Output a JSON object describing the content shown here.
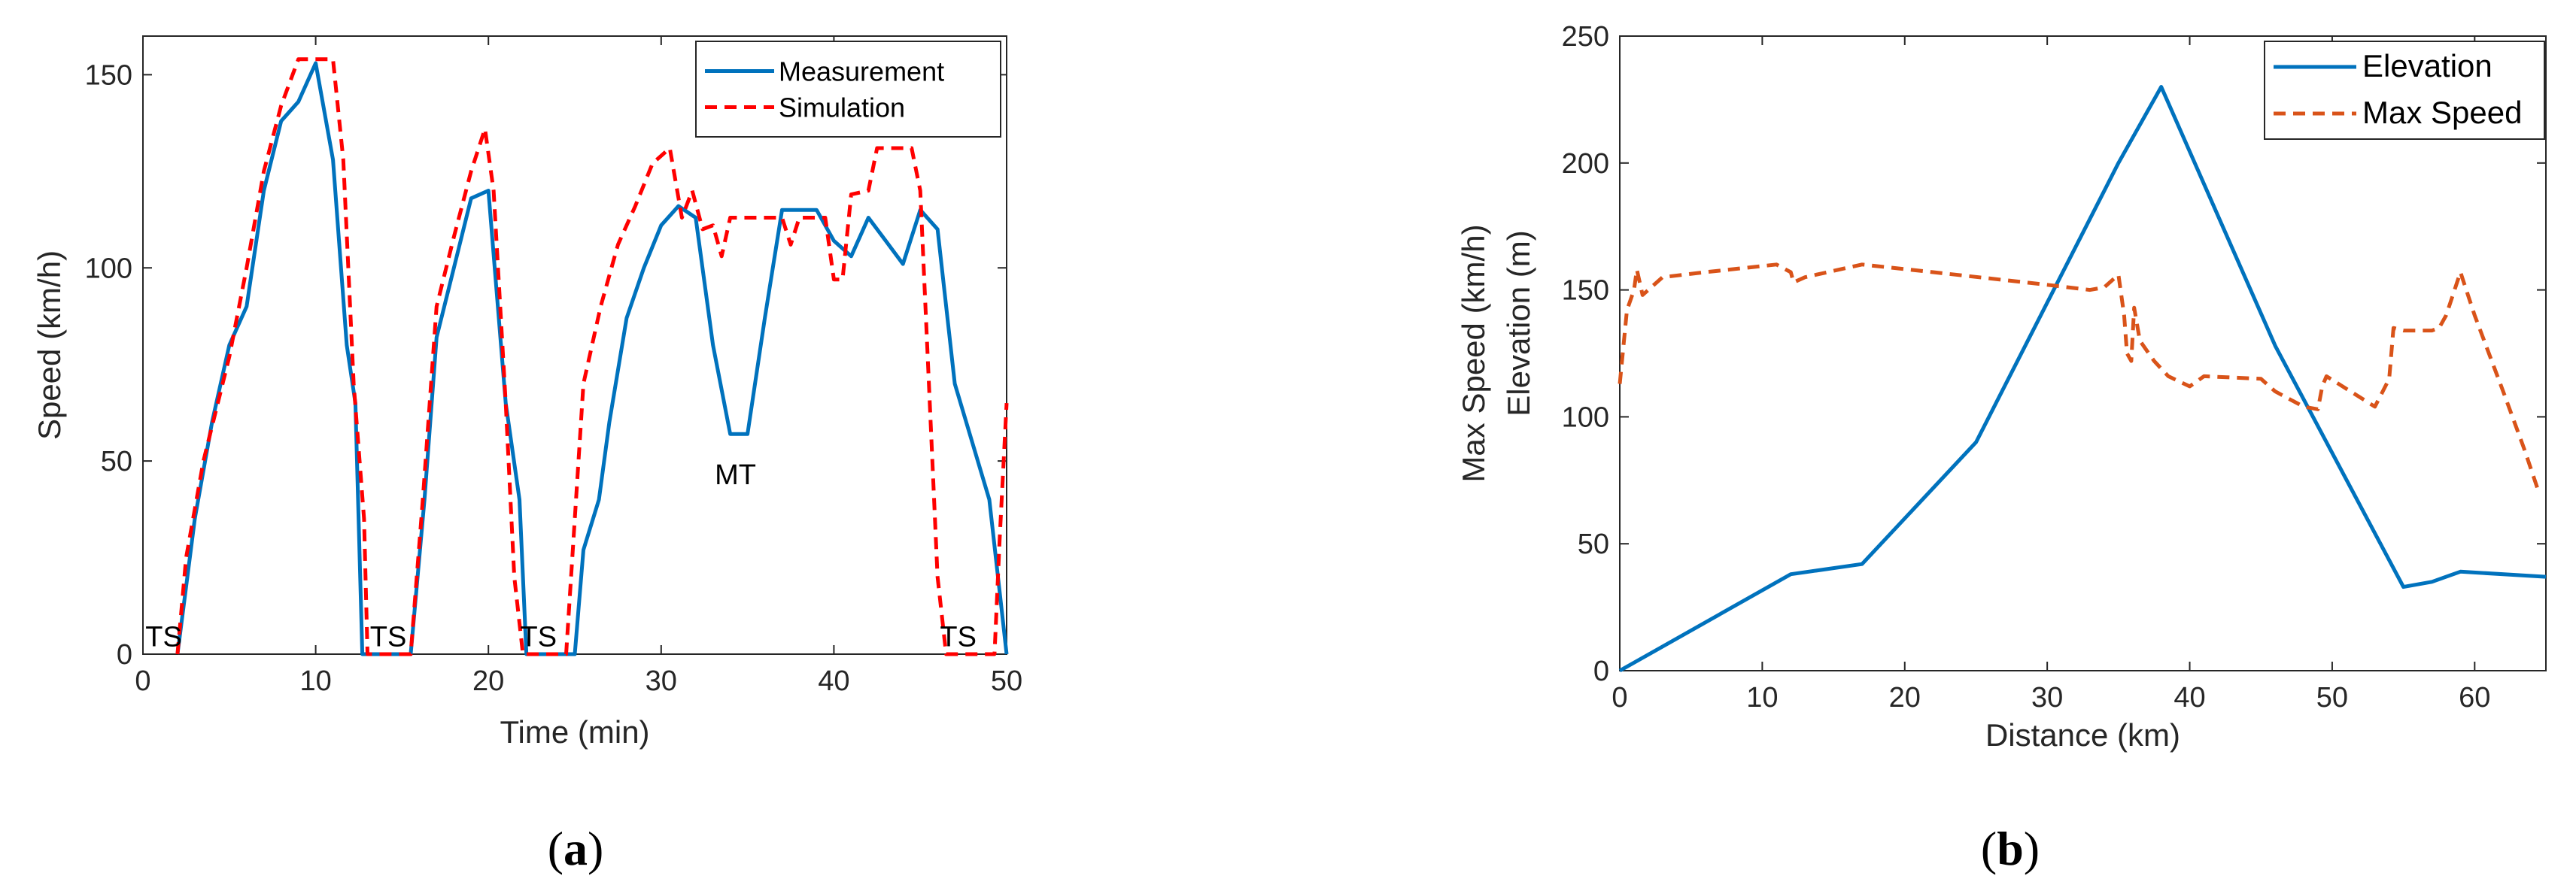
{
  "chart_data": [
    {
      "type": "line",
      "panel": "(a)",
      "panel_letter": "a",
      "xlabel": "Time (min)",
      "ylabel": "Speed (km/h)",
      "xlim": [
        0,
        50
      ],
      "ylim": [
        0,
        160
      ],
      "xticks": [
        0,
        10,
        20,
        30,
        40,
        50
      ],
      "yticks": [
        0,
        50,
        100,
        150
      ],
      "legend_position": "top-right",
      "series": [
        {
          "name": "Measurement",
          "style": "solid",
          "color": "#0072BD",
          "points": [
            [
              2,
              0
            ],
            [
              3,
              35
            ],
            [
              4,
              60
            ],
            [
              5,
              80
            ],
            [
              6,
              90
            ],
            [
              7,
              120
            ],
            [
              8,
              138
            ],
            [
              9,
              143
            ],
            [
              10,
              153
            ],
            [
              11,
              128
            ],
            [
              11.8,
              80
            ],
            [
              12.3,
              65
            ],
            [
              12.7,
              0
            ],
            [
              15.5,
              0
            ],
            [
              16.3,
              40
            ],
            [
              17,
              82
            ],
            [
              18,
              100
            ],
            [
              19,
              118
            ],
            [
              20,
              120
            ],
            [
              21,
              65
            ],
            [
              21.8,
              40
            ],
            [
              22.2,
              0
            ],
            [
              25,
              0
            ],
            [
              25.5,
              27
            ],
            [
              26.4,
              40
            ],
            [
              27,
              60
            ],
            [
              28,
              87
            ],
            [
              29,
              100
            ],
            [
              30,
              111
            ],
            [
              31,
              116
            ],
            [
              32,
              113
            ],
            [
              33,
              80
            ],
            [
              34,
              57
            ],
            [
              35,
              57
            ],
            [
              36,
              87
            ],
            [
              37,
              115
            ],
            [
              38,
              115
            ],
            [
              39,
              115
            ],
            [
              40,
              107
            ],
            [
              41,
              103
            ],
            [
              42,
              113
            ],
            [
              43,
              107
            ],
            [
              44,
              101
            ],
            [
              45,
              115
            ],
            [
              46,
              110
            ],
            [
              47,
              70
            ],
            [
              49,
              40
            ],
            [
              50,
              0
            ]
          ]
        },
        {
          "name": "Simulation",
          "style": "dashed",
          "color": "#FF0000",
          "points": [
            [
              2,
              0
            ],
            [
              2.5,
              25
            ],
            [
              3.5,
              50
            ],
            [
              5,
              77
            ],
            [
              6,
              100
            ],
            [
              7,
              125
            ],
            [
              8,
              142
            ],
            [
              9,
              154
            ],
            [
              10,
              154
            ],
            [
              11,
              154
            ],
            [
              11.6,
              128
            ],
            [
              12.2,
              70
            ],
            [
              12.8,
              35
            ],
            [
              13,
              0
            ],
            [
              15.5,
              0
            ],
            [
              16.2,
              40
            ],
            [
              17,
              90
            ],
            [
              18,
              108
            ],
            [
              19,
              125
            ],
            [
              19.8,
              136
            ],
            [
              20.3,
              120
            ],
            [
              21,
              65
            ],
            [
              21.5,
              20
            ],
            [
              22,
              0
            ],
            [
              24.5,
              0
            ],
            [
              25.5,
              70
            ],
            [
              26.5,
              90
            ],
            [
              27.5,
              106
            ],
            [
              28.5,
              116
            ],
            [
              29.5,
              127
            ],
            [
              30.5,
              131
            ],
            [
              31.2,
              113
            ],
            [
              31.8,
              120
            ],
            [
              32.4,
              110
            ],
            [
              33,
              111
            ],
            [
              33.5,
              103
            ],
            [
              34,
              113
            ],
            [
              36,
              113
            ],
            [
              37,
              113
            ],
            [
              37.5,
              106
            ],
            [
              38,
              113
            ],
            [
              39.5,
              113
            ],
            [
              40,
              97
            ],
            [
              40.5,
              97
            ],
            [
              41,
              119
            ],
            [
              42,
              120
            ],
            [
              42.5,
              131
            ],
            [
              44.5,
              131
            ],
            [
              45,
              120
            ],
            [
              45.5,
              70
            ],
            [
              46,
              20
            ],
            [
              46.5,
              0
            ],
            [
              49.3,
              0
            ],
            [
              49.6,
              30
            ],
            [
              50,
              65
            ]
          ]
        }
      ],
      "annotations": [
        {
          "text": "TS",
          "x": 1.2,
          "y": 2
        },
        {
          "text": "TS",
          "x": 14.2,
          "y": 2
        },
        {
          "text": "TS",
          "x": 22.9,
          "y": 2
        },
        {
          "text": "TS",
          "x": 47.2,
          "y": 2
        },
        {
          "text": "MT",
          "x": 34.3,
          "y": 44
        }
      ]
    },
    {
      "type": "line",
      "panel": "(b)",
      "panel_letter": "b",
      "xlabel": "Distance (km)",
      "ylabel_top": "Max Speed (km/h)",
      "ylabel_bottom": "Elevation (m)",
      "xlim": [
        0,
        65
      ],
      "ylim": [
        0,
        250
      ],
      "xticks": [
        0,
        10,
        20,
        30,
        40,
        50,
        60
      ],
      "yticks": [
        0,
        50,
        100,
        150,
        200,
        250
      ],
      "legend_position": "top-right",
      "series": [
        {
          "name": "Elevation",
          "style": "solid",
          "color": "#0072BD",
          "points": [
            [
              0,
              0
            ],
            [
              12,
              38
            ],
            [
              17,
              42
            ],
            [
              25,
              90
            ],
            [
              35,
              200
            ],
            [
              38,
              230
            ],
            [
              46,
              128
            ],
            [
              55,
              33
            ],
            [
              57,
              35
            ],
            [
              59,
              39
            ],
            [
              65,
              37
            ]
          ]
        },
        {
          "name": "Max Speed",
          "style": "dashed",
          "color": "#D95319",
          "points": [
            [
              0,
              113
            ],
            [
              0.5,
              142
            ],
            [
              1,
              150
            ],
            [
              1.2,
              158
            ],
            [
              1.6,
              148
            ],
            [
              3,
              155
            ],
            [
              6,
              157
            ],
            [
              11,
              160
            ],
            [
              12,
              157
            ],
            [
              12.2,
              153
            ],
            [
              13,
              155
            ],
            [
              17,
              160
            ],
            [
              22,
              157
            ],
            [
              30,
              152
            ],
            [
              33,
              150
            ],
            [
              34,
              151
            ],
            [
              35,
              156
            ],
            [
              35.4,
              140
            ],
            [
              35.6,
              125
            ],
            [
              35.9,
              122
            ],
            [
              36.1,
              143
            ],
            [
              36.5,
              130
            ],
            [
              37.5,
              122
            ],
            [
              38.5,
              116
            ],
            [
              40,
              112
            ],
            [
              41,
              116
            ],
            [
              45,
              115
            ],
            [
              46,
              110
            ],
            [
              48,
              104
            ],
            [
              49,
              103
            ],
            [
              49.3,
              112
            ],
            [
              49.6,
              116
            ],
            [
              53,
              104
            ],
            [
              54,
              115
            ],
            [
              54.3,
              135
            ],
            [
              55,
              134
            ],
            [
              57,
              134
            ],
            [
              57.5,
              135
            ],
            [
              58,
              140
            ],
            [
              59,
              157
            ],
            [
              60,
              140
            ],
            [
              62,
              110
            ],
            [
              63.5,
              87
            ],
            [
              64.4,
              72
            ]
          ]
        }
      ]
    }
  ]
}
